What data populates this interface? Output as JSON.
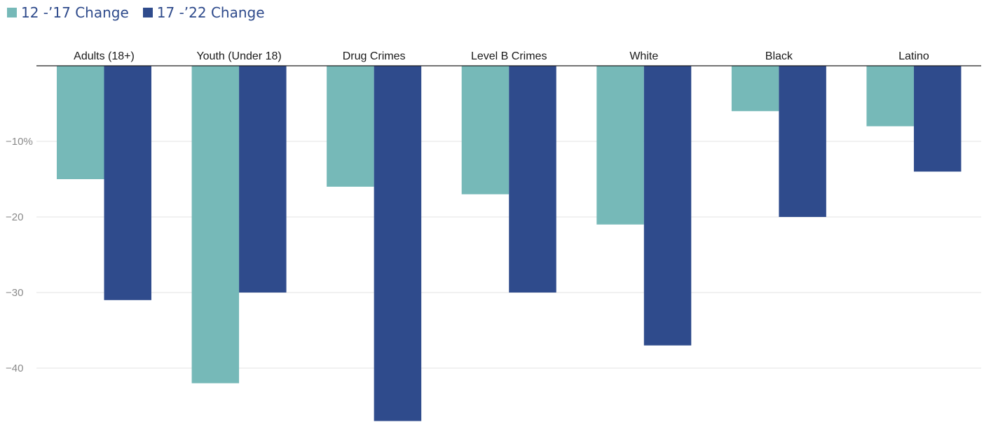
{
  "legend": [
    {
      "label": "12 -’17 Change",
      "color": "#76b9b8"
    },
    {
      "label": "17 -’22 Change",
      "color": "#2f4b8c"
    }
  ],
  "chart_data": {
    "type": "bar",
    "categories": [
      "Adults (18+)",
      "Youth (Under 18)",
      "Drug Crimes",
      "Level B Crimes",
      "White",
      "Black",
      "Latino"
    ],
    "series": [
      {
        "name": "12 -’17 Change",
        "values": [
          -15,
          -42,
          -16,
          -17,
          -21,
          -6,
          -8
        ]
      },
      {
        "name": "17 -’22 Change",
        "values": [
          -31,
          -30,
          -47,
          -30,
          -37,
          -20,
          -14
        ]
      }
    ],
    "title": "",
    "xlabel": "",
    "ylabel": "",
    "ylim": [
      -47,
      0
    ],
    "yticks": [
      {
        "value": -10,
        "label": "−10%"
      },
      {
        "value": -20,
        "label": "−20"
      },
      {
        "value": -30,
        "label": "−30"
      },
      {
        "value": -40,
        "label": "−40"
      }
    ],
    "grid": true,
    "legend_position": "top-left"
  }
}
